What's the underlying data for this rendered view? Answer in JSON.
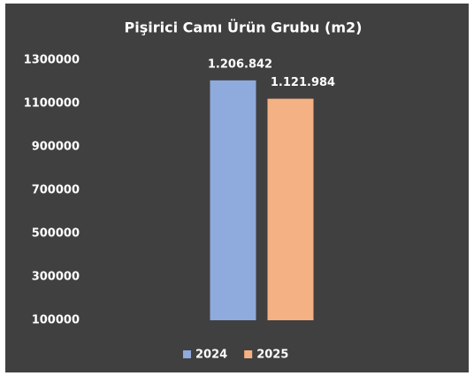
{
  "chart_data": {
    "type": "bar",
    "title": "Pişirici Camı Ürün Grubu (m2)",
    "categories": [
      null
    ],
    "series": [
      {
        "name": "2024",
        "color": "#8faadc",
        "values": [
          1206842
        ],
        "value_labels": [
          "1.206.842"
        ]
      },
      {
        "name": "2025",
        "color": "#f4b183",
        "values": [
          1121984
        ],
        "value_labels": [
          "1.121.984"
        ]
      }
    ],
    "ylim": [
      100000,
      1300000
    ],
    "yticks": [
      100000,
      300000,
      500000,
      700000,
      900000,
      1100000,
      1300000
    ],
    "grid": false,
    "legend": "bottom"
  }
}
